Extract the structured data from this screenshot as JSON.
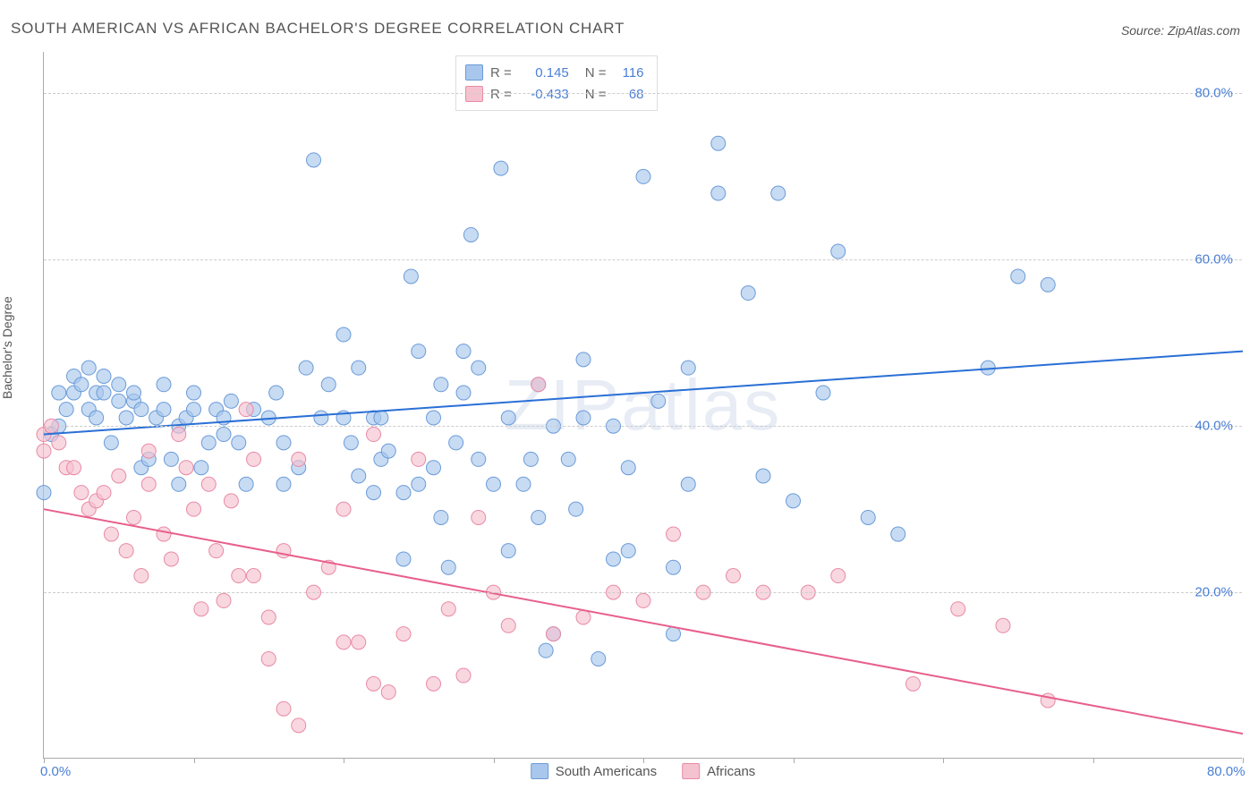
{
  "title": "SOUTH AMERICAN VS AFRICAN BACHELOR'S DEGREE CORRELATION CHART",
  "source": "Source: ZipAtlas.com",
  "watermark": "ZIPatlas",
  "yaxis_label": "Bachelor's Degree",
  "chart": {
    "type": "scatter",
    "xlim": [
      0,
      80
    ],
    "ylim": [
      0,
      85
    ],
    "xtick_labels": [
      "0.0%",
      "80.0%"
    ],
    "xtick_positions": [
      0,
      80
    ],
    "xtick_marks": [
      0,
      10,
      20,
      30,
      40,
      50,
      60,
      70,
      80
    ],
    "ytick_labels": [
      "20.0%",
      "40.0%",
      "60.0%",
      "80.0%"
    ],
    "ytick_positions": [
      20,
      40,
      60,
      80
    ],
    "grid_color": "#cccccc",
    "background_color": "#ffffff",
    "series": [
      {
        "name": "South Americans",
        "marker_fill": "#a9c7ec",
        "marker_stroke": "#6b9bd8",
        "marker_opacity": 0.65,
        "marker_radius": 8,
        "line_color": "#2a6fd6",
        "line_width": 2,
        "trend_y_at_x0": 39,
        "trend_y_at_xmax": 49,
        "R": "0.145",
        "N": "116",
        "points": [
          [
            0,
            32
          ],
          [
            0.5,
            39
          ],
          [
            1,
            40
          ],
          [
            1,
            44
          ],
          [
            1.5,
            42
          ],
          [
            2,
            46
          ],
          [
            2,
            44
          ],
          [
            2.5,
            45
          ],
          [
            3,
            42
          ],
          [
            3,
            47
          ],
          [
            3.5,
            44
          ],
          [
            3.5,
            41
          ],
          [
            4,
            46
          ],
          [
            4,
            44
          ],
          [
            4.5,
            38
          ],
          [
            5,
            43
          ],
          [
            5,
            45
          ],
          [
            5.5,
            41
          ],
          [
            6,
            43
          ],
          [
            6,
            44
          ],
          [
            6.5,
            42
          ],
          [
            6.5,
            35
          ],
          [
            7,
            36
          ],
          [
            7.5,
            41
          ],
          [
            8,
            42
          ],
          [
            8,
            45
          ],
          [
            8.5,
            36
          ],
          [
            9,
            33
          ],
          [
            9,
            40
          ],
          [
            9.5,
            41
          ],
          [
            10,
            44
          ],
          [
            10,
            42
          ],
          [
            10.5,
            35
          ],
          [
            11,
            38
          ],
          [
            11.5,
            42
          ],
          [
            12,
            41
          ],
          [
            12,
            39
          ],
          [
            12.5,
            43
          ],
          [
            13,
            38
          ],
          [
            13.5,
            33
          ],
          [
            14,
            42
          ],
          [
            15,
            41
          ],
          [
            15.5,
            44
          ],
          [
            16,
            38
          ],
          [
            16,
            33
          ],
          [
            17,
            35
          ],
          [
            17.5,
            47
          ],
          [
            18,
            72
          ],
          [
            18.5,
            41
          ],
          [
            19,
            45
          ],
          [
            20,
            41
          ],
          [
            20,
            51
          ],
          [
            20.5,
            38
          ],
          [
            21,
            34
          ],
          [
            21,
            47
          ],
          [
            22,
            32
          ],
          [
            22,
            41
          ],
          [
            22.5,
            41
          ],
          [
            22.5,
            36
          ],
          [
            23,
            37
          ],
          [
            24,
            32
          ],
          [
            24,
            24
          ],
          [
            24.5,
            58
          ],
          [
            25,
            33
          ],
          [
            25,
            49
          ],
          [
            26,
            35
          ],
          [
            26,
            41
          ],
          [
            26.5,
            45
          ],
          [
            26.5,
            29
          ],
          [
            27,
            23
          ],
          [
            27.5,
            38
          ],
          [
            28,
            49
          ],
          [
            28,
            44
          ],
          [
            28.5,
            63
          ],
          [
            29,
            47
          ],
          [
            29,
            36
          ],
          [
            29.5,
            79
          ],
          [
            30,
            33
          ],
          [
            30.5,
            71
          ],
          [
            31,
            41
          ],
          [
            31,
            25
          ],
          [
            32,
            33
          ],
          [
            32.5,
            36
          ],
          [
            33,
            45
          ],
          [
            33,
            29
          ],
          [
            33.5,
            13
          ],
          [
            34,
            40
          ],
          [
            34,
            15
          ],
          [
            35,
            36
          ],
          [
            35.5,
            30
          ],
          [
            36,
            41
          ],
          [
            36,
            48
          ],
          [
            37,
            12
          ],
          [
            38,
            40
          ],
          [
            38,
            24
          ],
          [
            39,
            25
          ],
          [
            39,
            35
          ],
          [
            40,
            70
          ],
          [
            41,
            43
          ],
          [
            42,
            23
          ],
          [
            42,
            15
          ],
          [
            43,
            33
          ],
          [
            43,
            47
          ],
          [
            45,
            74
          ],
          [
            45,
            68
          ],
          [
            47,
            56
          ],
          [
            48,
            34
          ],
          [
            49,
            68
          ],
          [
            50,
            31
          ],
          [
            52,
            44
          ],
          [
            53,
            61
          ],
          [
            55,
            29
          ],
          [
            57,
            27
          ],
          [
            63,
            47
          ],
          [
            65,
            58
          ],
          [
            67,
            57
          ]
        ]
      },
      {
        "name": "Africans",
        "marker_fill": "#f5c2d0",
        "marker_stroke": "#e98aa5",
        "marker_opacity": 0.65,
        "marker_radius": 8,
        "line_color": "#e85f8b",
        "line_width": 2,
        "trend_y_at_x0": 30,
        "trend_y_at_xmax": 3,
        "R": "-0.433",
        "N": "68",
        "points": [
          [
            0,
            39
          ],
          [
            0,
            37
          ],
          [
            0.5,
            40
          ],
          [
            1,
            38
          ],
          [
            1.5,
            35
          ],
          [
            2,
            35
          ],
          [
            2.5,
            32
          ],
          [
            3,
            30
          ],
          [
            3.5,
            31
          ],
          [
            4,
            32
          ],
          [
            4.5,
            27
          ],
          [
            5,
            34
          ],
          [
            5.5,
            25
          ],
          [
            6,
            29
          ],
          [
            6.5,
            22
          ],
          [
            7,
            37
          ],
          [
            7,
            33
          ],
          [
            8,
            27
          ],
          [
            8.5,
            24
          ],
          [
            9,
            39
          ],
          [
            9.5,
            35
          ],
          [
            10,
            30
          ],
          [
            10.5,
            18
          ],
          [
            11,
            33
          ],
          [
            11.5,
            25
          ],
          [
            12,
            19
          ],
          [
            12.5,
            31
          ],
          [
            13,
            22
          ],
          [
            13.5,
            42
          ],
          [
            14,
            36
          ],
          [
            14,
            22
          ],
          [
            15,
            17
          ],
          [
            15,
            12
          ],
          [
            16,
            25
          ],
          [
            16,
            6
          ],
          [
            17,
            36
          ],
          [
            17,
            4
          ],
          [
            18,
            20
          ],
          [
            19,
            23
          ],
          [
            20,
            30
          ],
          [
            20,
            14
          ],
          [
            21,
            14
          ],
          [
            22,
            39
          ],
          [
            22,
            9
          ],
          [
            23,
            8
          ],
          [
            24,
            15
          ],
          [
            25,
            36
          ],
          [
            26,
            9
          ],
          [
            27,
            18
          ],
          [
            28,
            10
          ],
          [
            29,
            29
          ],
          [
            30,
            20
          ],
          [
            31,
            16
          ],
          [
            33,
            45
          ],
          [
            34,
            15
          ],
          [
            36,
            17
          ],
          [
            38,
            20
          ],
          [
            40,
            19
          ],
          [
            42,
            27
          ],
          [
            44,
            20
          ],
          [
            46,
            22
          ],
          [
            48,
            20
          ],
          [
            51,
            20
          ],
          [
            53,
            22
          ],
          [
            58,
            9
          ],
          [
            61,
            18
          ],
          [
            64,
            16
          ],
          [
            67,
            7
          ]
        ]
      }
    ],
    "legend_rn": {
      "R_label": "R =",
      "N_label": "N ="
    },
    "bottom_legend": {
      "items": [
        "South Americans",
        "Africans"
      ]
    }
  }
}
